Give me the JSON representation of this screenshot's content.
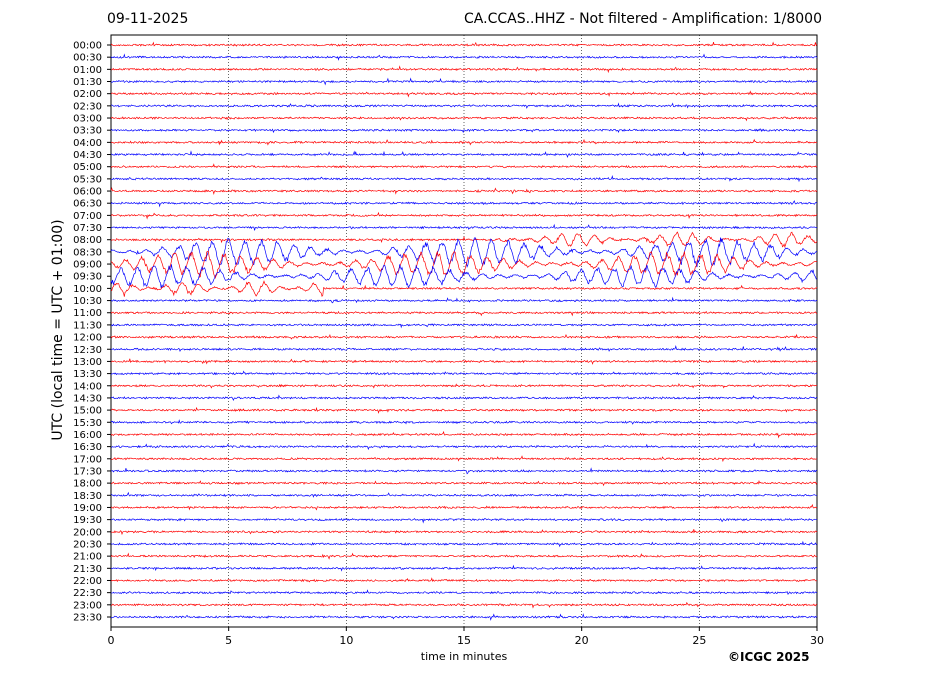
{
  "header": {
    "date": "09-11-2025",
    "title": "CA.CCAS..HHZ - Not filtered - Amplification: 1/8000"
  },
  "footer": {
    "copyright": "©ICGC 2025"
  },
  "chart_data": {
    "type": "line",
    "title": "CA.CCAS..HHZ - Not filtered - Amplification: 1/8000",
    "xlabel": "time in minutes",
    "ylabel": "UTC (local time = UTC + 01:00)",
    "xlim": [
      0,
      30
    ],
    "xticks": [
      0,
      5,
      10,
      15,
      20,
      25,
      30
    ],
    "grid": "vertical dotted lines at each x tick",
    "row_labels": [
      "00:00",
      "00:30",
      "01:00",
      "01:30",
      "02:00",
      "02:30",
      "03:00",
      "03:30",
      "04:00",
      "04:30",
      "05:00",
      "05:30",
      "06:00",
      "06:30",
      "07:00",
      "07:30",
      "08:00",
      "08:30",
      "09:00",
      "09:30",
      "10:00",
      "10:30",
      "11:00",
      "11:30",
      "12:00",
      "12:30",
      "13:00",
      "13:30",
      "14:00",
      "14:30",
      "15:00",
      "15:30",
      "16:00",
      "16:30",
      "17:00",
      "17:30",
      "18:00",
      "18:30",
      "19:00",
      "19:30",
      "20:00",
      "20:30",
      "21:00",
      "21:30",
      "22:00",
      "22:30",
      "23:00",
      "23:30"
    ],
    "trace_colors": [
      "#ff0000",
      "#0000ff"
    ],
    "color_pattern": "alternating red, blue starting with red at 00:00",
    "activity_windows": [
      {
        "row": "08:00",
        "from_min": 16.5,
        "to_min": 30,
        "level": 0.5
      },
      {
        "row": "08:30",
        "from_min": 0,
        "to_min": 30,
        "level": 1.0
      },
      {
        "row": "09:00",
        "from_min": 0,
        "to_min": 30,
        "level": 0.9
      },
      {
        "row": "09:30",
        "from_min": 0,
        "to_min": 30,
        "level": 0.8
      },
      {
        "row": "10:00",
        "from_min": 0,
        "to_min": 9,
        "level": 0.5
      }
    ]
  }
}
